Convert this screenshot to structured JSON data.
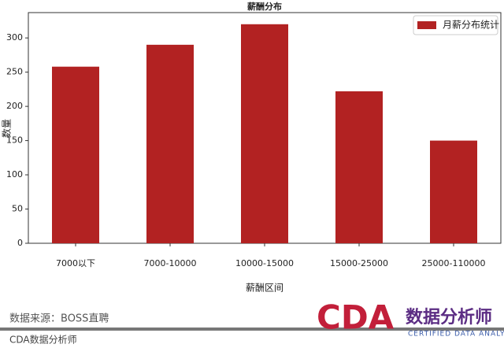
{
  "chart_data": {
    "type": "bar",
    "title": "薪酬分布",
    "x_label": "薪酬区间",
    "y_label": "数量",
    "categories": [
      "7000以下",
      "7000-10000",
      "10000-15000",
      "15000-25000",
      "25000-110000"
    ],
    "series": [
      {
        "name": "月薪分布统计",
        "color": "#b22222",
        "values": [
          258,
          290,
          320,
          222,
          150
        ]
      }
    ],
    "ylim": [
      0,
      337
    ],
    "yticks": [
      0,
      50,
      100,
      150,
      200,
      250,
      300
    ],
    "grid": false,
    "legend": "upper right"
  },
  "footer": {
    "source": "数据来源：BOSS直聘",
    "brand": "CDA数据分析师"
  },
  "logo": {
    "letters": "CDA",
    "name": "数据分析师",
    "tagline": "CERTIFIED DATA ANALYST"
  }
}
